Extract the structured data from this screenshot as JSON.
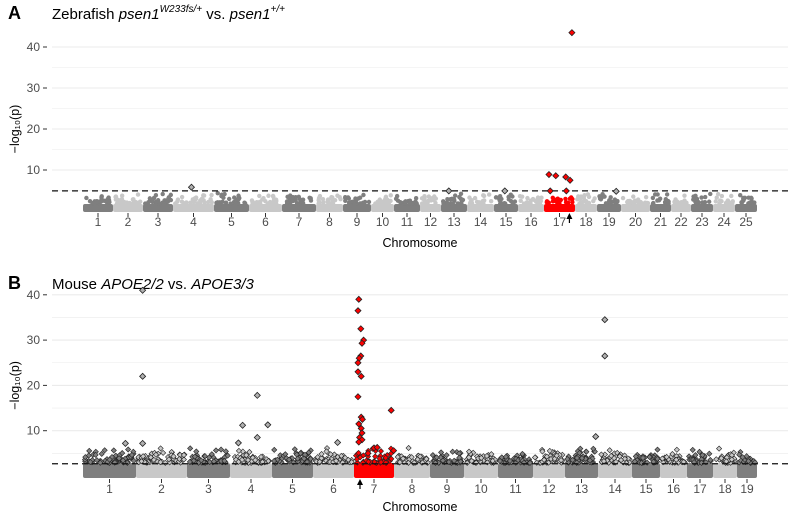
{
  "colors": {
    "dark": "#7f7f7f",
    "light": "#c8c8c8",
    "highlight": "#ff0000",
    "grid": "#ebebeb"
  },
  "chart_data": [
    {
      "type": "scatter",
      "panel_label": "A",
      "title": {
        "pre": "Zebrafish ",
        "g1": "psen1",
        "s1": "W233fs/+",
        "mid": " vs. ",
        "g2": "psen1",
        "s2": "+/+"
      },
      "xlabel": "Chromosome",
      "ylabel": "−log₁₀(p)",
      "ylim": [
        0,
        44
      ],
      "yticks": [
        10,
        20,
        30,
        40
      ],
      "threshold": 4.9,
      "chromosomes": [
        "1",
        "2",
        "3",
        "4",
        "5",
        "6",
        "7",
        "8",
        "9",
        "10",
        "11",
        "12",
        "13",
        "14",
        "15",
        "16",
        "17",
        "18",
        "19",
        "20",
        "21",
        "22",
        "23",
        "24",
        "25"
      ],
      "chrom_sizes": [
        30,
        30,
        30,
        41,
        35,
        33,
        34,
        27,
        28,
        23,
        26,
        21,
        26,
        27,
        24,
        26,
        31,
        22,
        24,
        29,
        21,
        20,
        22,
        22,
        22
      ],
      "highlight_chrom": "17",
      "arrow_chrom": "17",
      "arrow_pos": 0.82,
      "notable": [
        {
          "chr": "4",
          "pos": 0.45,
          "y": 5.8
        },
        {
          "chr": "13",
          "pos": 0.3,
          "y": 4.9
        },
        {
          "chr": "15",
          "pos": 0.45,
          "y": 4.9
        },
        {
          "chr": "19",
          "pos": 0.8,
          "y": 4.8
        },
        {
          "chr": "17",
          "pos": 0.9,
          "y": 43.5
        },
        {
          "chr": "17",
          "pos": 0.16,
          "y": 8.9
        },
        {
          "chr": "17",
          "pos": 0.38,
          "y": 8.6
        },
        {
          "chr": "17",
          "pos": 0.7,
          "y": 8.3
        },
        {
          "chr": "17",
          "pos": 0.84,
          "y": 7.5
        },
        {
          "chr": "17",
          "pos": 0.2,
          "y": 4.9
        },
        {
          "chr": "17",
          "pos": 0.72,
          "y": 4.9
        }
      ]
    },
    {
      "type": "scatter",
      "panel_label": "B",
      "title": {
        "pre": "Mouse ",
        "g1": "APOE2/2",
        "s1": "",
        "mid": " vs. ",
        "g2": "APOE3/3",
        "s2": ""
      },
      "xlabel": "Chromosome",
      "ylabel": "−log₁₀(p)",
      "ylim": [
        0,
        42
      ],
      "yticks": [
        10,
        20,
        30,
        40
      ],
      "threshold": 2.7,
      "chromosomes": [
        "1",
        "2",
        "3",
        "4",
        "5",
        "6",
        "7",
        "8",
        "9",
        "10",
        "11",
        "12",
        "13",
        "14",
        "15",
        "16",
        "17",
        "18",
        "19"
      ],
      "chrom_sizes": [
        53,
        51,
        43,
        42,
        41,
        41,
        40,
        36,
        34,
        34,
        35,
        32,
        33,
        34,
        28,
        27,
        26,
        24,
        20
      ],
      "highlight_chrom": "7",
      "arrow_chrom": "7",
      "arrow_pos": 0.15,
      "notable": [
        {
          "chr": "2",
          "pos": 0.13,
          "y": 41
        },
        {
          "chr": "2",
          "pos": 0.13,
          "y": 22
        },
        {
          "chr": "2",
          "pos": 0.13,
          "y": 7.2
        },
        {
          "chr": "1",
          "pos": 0.8,
          "y": 7.2
        },
        {
          "chr": "4",
          "pos": 0.65,
          "y": 17.8
        },
        {
          "chr": "4",
          "pos": 0.65,
          "y": 8.5
        },
        {
          "chr": "4",
          "pos": 0.3,
          "y": 11.2
        },
        {
          "chr": "4",
          "pos": 0.9,
          "y": 11.3
        },
        {
          "chr": "4",
          "pos": 0.2,
          "y": 7.3
        },
        {
          "chr": "14",
          "pos": 0.2,
          "y": 34.5
        },
        {
          "chr": "14",
          "pos": 0.2,
          "y": 26.5
        },
        {
          "chr": "13",
          "pos": 0.93,
          "y": 8.7
        },
        {
          "chr": "6",
          "pos": 0.6,
          "y": 7.4
        },
        {
          "chr": "7",
          "pos": 0.12,
          "y": 39
        },
        {
          "chr": "7",
          "pos": 0.1,
          "y": 36.5
        },
        {
          "chr": "7",
          "pos": 0.17,
          "y": 32.5
        },
        {
          "chr": "7",
          "pos": 0.24,
          "y": 30
        },
        {
          "chr": "7",
          "pos": 0.2,
          "y": 29.3
        },
        {
          "chr": "7",
          "pos": 0.17,
          "y": 26.5
        },
        {
          "chr": "7",
          "pos": 0.13,
          "y": 26
        },
        {
          "chr": "7",
          "pos": 0.1,
          "y": 25
        },
        {
          "chr": "7",
          "pos": 0.1,
          "y": 23
        },
        {
          "chr": "7",
          "pos": 0.18,
          "y": 22
        },
        {
          "chr": "7",
          "pos": 0.1,
          "y": 17.5
        },
        {
          "chr": "7",
          "pos": 0.93,
          "y": 14.5
        },
        {
          "chr": "7",
          "pos": 0.18,
          "y": 13
        },
        {
          "chr": "7",
          "pos": 0.21,
          "y": 12.5
        },
        {
          "chr": "7",
          "pos": 0.12,
          "y": 11.5
        },
        {
          "chr": "7",
          "pos": 0.18,
          "y": 10.5
        },
        {
          "chr": "7",
          "pos": 0.2,
          "y": 9.5
        },
        {
          "chr": "7",
          "pos": 0.14,
          "y": 8.5
        },
        {
          "chr": "7",
          "pos": 0.2,
          "y": 8
        },
        {
          "chr": "7",
          "pos": 0.12,
          "y": 7.5
        },
        {
          "chr": "7",
          "pos": 0.5,
          "y": 6.2
        },
        {
          "chr": "7",
          "pos": 0.58,
          "y": 6.3
        },
        {
          "chr": "7",
          "pos": 0.99,
          "y": 5.6
        },
        {
          "chr": "7",
          "pos": 0.35,
          "y": 5
        }
      ]
    }
  ]
}
